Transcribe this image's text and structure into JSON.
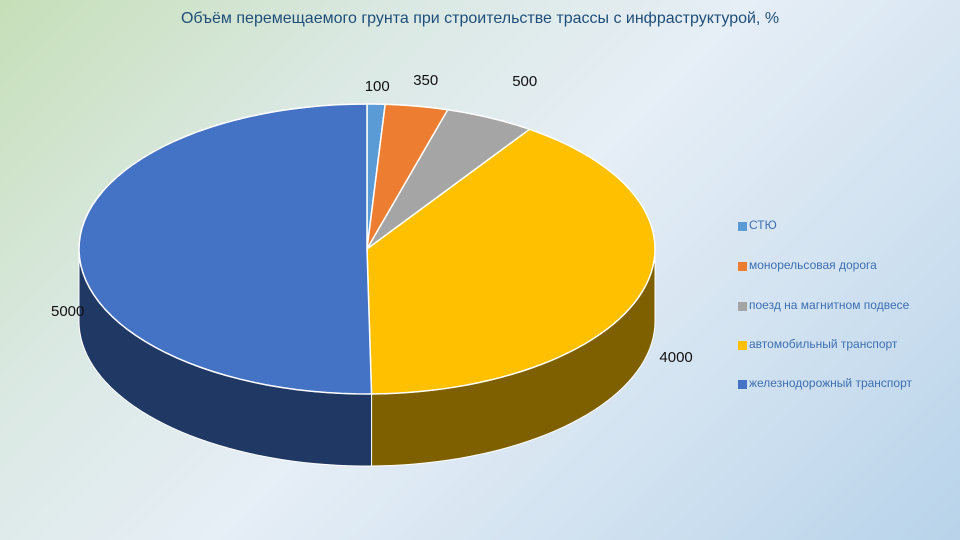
{
  "chart_data": {
    "type": "pie",
    "title": "Объём перемещаемого грунта при строительстве трассы с инфраструктурой, %",
    "legend_position": "right",
    "style": "3d",
    "categories": [
      "СТЮ",
      "монорельсовая дорога",
      "поезд на магнитном подвесе",
      "автомобильный транспорт",
      "железнодорожный транспорт"
    ],
    "values": [
      100,
      350,
      500,
      4000,
      5000
    ],
    "data_labels": [
      "100",
      "350",
      "500",
      "4000",
      "5000"
    ],
    "colors": [
      "#5b9bd5",
      "#ed7d31",
      "#a5a5a5",
      "#ffc000",
      "#4472c4"
    ],
    "side_colors": [
      "#2e5a86",
      "#a0521a",
      "#6e6e6e",
      "#7f6000",
      "#203864"
    ]
  }
}
